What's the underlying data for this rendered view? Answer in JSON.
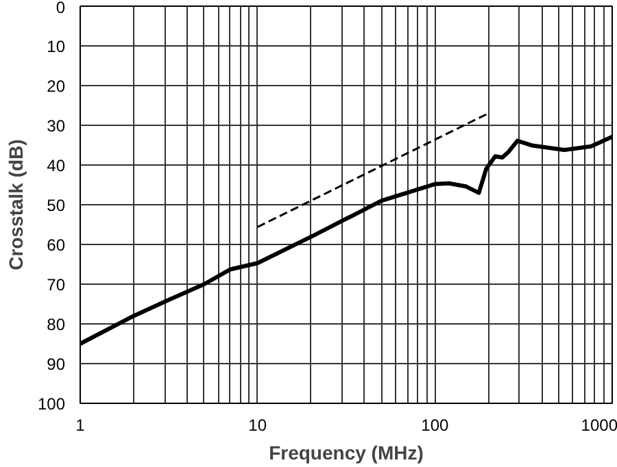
{
  "chart_data": {
    "type": "line",
    "xlabel": "Frequency (MHz)",
    "ylabel": "Crosstalk (dB)",
    "log": "x",
    "grid": true,
    "xlim": [
      1,
      1000
    ],
    "ylim": [
      100,
      0
    ],
    "xticks": [
      1,
      {
        "value": 2,
        "label": null
      },
      {
        "value": 3,
        "label": null
      },
      {
        "value": 4,
        "label": null
      },
      {
        "value": 5,
        "label": null
      },
      {
        "value": 6,
        "label": null
      },
      {
        "value": 7,
        "label": null
      },
      {
        "value": 8,
        "label": null
      },
      {
        "value": 9,
        "label": null
      },
      10,
      {
        "value": 20,
        "label": null
      },
      {
        "value": 30,
        "label": null
      },
      {
        "value": 40,
        "label": null
      },
      {
        "value": 50,
        "label": null
      },
      {
        "value": 60,
        "label": null
      },
      {
        "value": 70,
        "label": null
      },
      {
        "value": 80,
        "label": null
      },
      {
        "value": 90,
        "label": null
      },
      100,
      {
        "value": 200,
        "label": null
      },
      {
        "value": 300,
        "label": null
      },
      {
        "value": 400,
        "label": null
      },
      {
        "value": 500,
        "label": null
      },
      {
        "value": 600,
        "label": null
      },
      {
        "value": 700,
        "label": null
      },
      {
        "value": 800,
        "label": null
      },
      {
        "value": 900,
        "label": null
      },
      1000
    ],
    "yticks": [
      0,
      10,
      20,
      30,
      40,
      50,
      60,
      70,
      80,
      90,
      100
    ],
    "series": [
      {
        "color": "#000000",
        "line_style": "solid",
        "x": [
          1,
          2,
          3,
          5,
          7,
          10,
          21,
          50,
          100,
          120,
          150,
          177,
          195,
          219,
          240,
          260,
          292,
          355,
          537,
          760,
          1000
        ],
        "values": [
          85,
          78,
          74.4,
          70,
          66.3,
          64.7,
          57.6,
          49,
          44.8,
          44.6,
          45.4,
          47,
          40.9,
          37.8,
          38.1,
          36.7,
          33.9,
          35.1,
          36.2,
          35.3,
          32.9
        ]
      },
      {
        "color": "#000000",
        "line_style": "dashed",
        "x": [
          10,
          200
        ],
        "values": [
          55.6,
          27
        ]
      }
    ]
  }
}
